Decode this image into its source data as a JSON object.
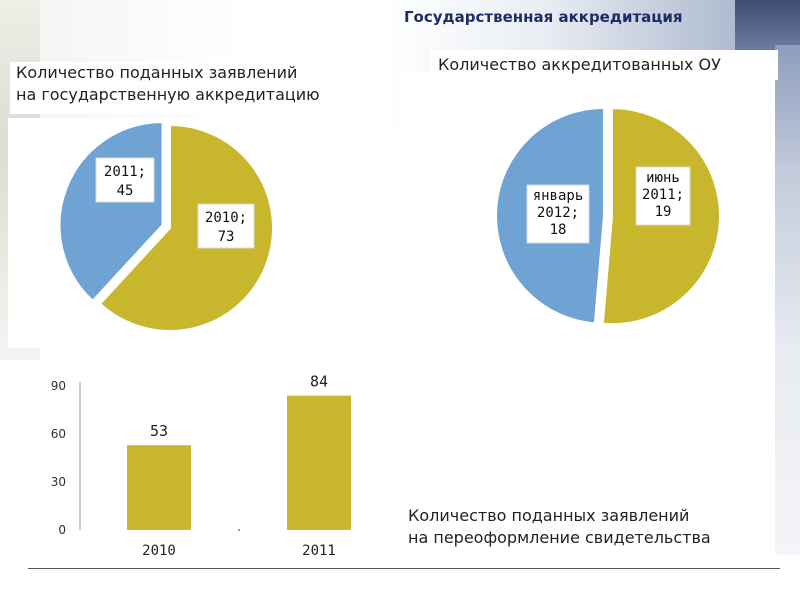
{
  "header": {
    "title": "Государственная аккредитация"
  },
  "colors": {
    "yellow": "#c8b72d",
    "blue": "#6ea3d4",
    "title": "#1f2d66"
  },
  "chart_data": [
    {
      "type": "pie",
      "title_lines": [
        "Количество поданных заявлений",
        "на государственную аккредитацию"
      ],
      "slices": [
        {
          "label": "2010;",
          "value": 73,
          "value_text": "73",
          "color": "#c8b72d",
          "exploded": false
        },
        {
          "label": "2011;",
          "value": 45,
          "value_text": "45",
          "color": "#6ea3d4",
          "exploded": true
        }
      ]
    },
    {
      "type": "pie",
      "title_lines": [
        "Количество аккредитованных ОУ"
      ],
      "slices": [
        {
          "label_lines": [
            "июнь",
            "2011;",
            "19"
          ],
          "value": 19,
          "color": "#c8b72d"
        },
        {
          "label_lines": [
            "январь",
            "2012;",
            "18"
          ],
          "value": 18,
          "color": "#6ea3d4"
        }
      ]
    },
    {
      "type": "bar",
      "title_lines": [
        "Количество поданных заявлений",
        "на переоформление свидетельства"
      ],
      "categories": [
        "2010",
        "2011"
      ],
      "values": [
        53,
        84
      ],
      "value_labels": [
        "53",
        "84"
      ],
      "ylim": [
        0,
        90
      ],
      "yticks": [
        "0",
        "30",
        "60",
        "90"
      ],
      "ytick_values": [
        0,
        30,
        60,
        90
      ],
      "color": "#c8b72d",
      "grid": false
    }
  ]
}
